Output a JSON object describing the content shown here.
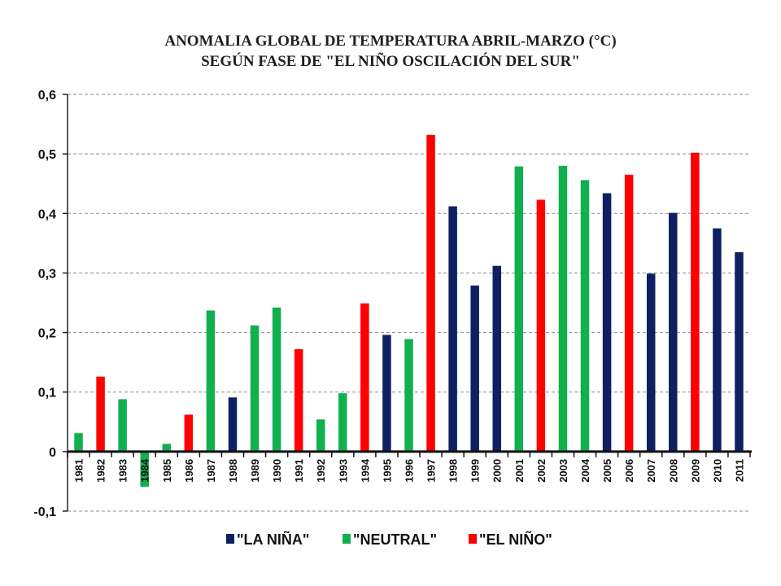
{
  "chart_data": {
    "type": "bar",
    "title": "ANOMALIA GLOBAL DE TEMPERATURA ABRIL-MARZO (°C)",
    "subtitle": "SEGÚN FASE DE \"EL NIÑO OSCILACIÓN DEL SUR\"",
    "xlabel": "",
    "ylabel": "",
    "ylim": [
      -0.1,
      0.6
    ],
    "yticks": [
      "0,6",
      "0,5",
      "0,4",
      "0,3",
      "0,2",
      "0,1",
      "0",
      "-0,1"
    ],
    "ytick_values": [
      0.6,
      0.5,
      0.4,
      0.3,
      0.2,
      0.1,
      0,
      -0.1
    ],
    "grid": true,
    "legend_position": "bottom",
    "categories": [
      "1981",
      "1982",
      "1983",
      "1984",
      "1985",
      "1986",
      "1987",
      "1988",
      "1989",
      "1990",
      "1991",
      "1992",
      "1993",
      "1994",
      "1995",
      "1996",
      "1997",
      "1998",
      "1999",
      "2000",
      "2001",
      "2002",
      "2003",
      "2004",
      "2005",
      "2006",
      "2007",
      "2008",
      "2009",
      "2010",
      "2011"
    ],
    "values": [
      0.031,
      0.126,
      0.088,
      -0.059,
      0.013,
      0.062,
      0.237,
      0.091,
      0.212,
      0.242,
      0.172,
      0.054,
      0.098,
      0.249,
      0.196,
      0.189,
      0.532,
      0.412,
      0.279,
      0.312,
      0.479,
      0.423,
      0.48,
      0.456,
      0.434,
      0.465,
      0.299,
      0.401,
      0.502,
      0.375,
      0.335
    ],
    "phases": [
      "neutral",
      "el_nino",
      "neutral",
      "neutral",
      "neutral",
      "el_nino",
      "neutral",
      "la_nina",
      "neutral",
      "neutral",
      "el_nino",
      "neutral",
      "neutral",
      "el_nino",
      "la_nina",
      "neutral",
      "el_nino",
      "la_nina",
      "la_nina",
      "la_nina",
      "neutral",
      "el_nino",
      "neutral",
      "neutral",
      "la_nina",
      "el_nino",
      "la_nina",
      "la_nina",
      "el_nino",
      "la_nina",
      "la_nina"
    ],
    "series": [
      {
        "key": "la_nina",
        "name": "\"LA NIÑA\"",
        "color": "#0f2062"
      },
      {
        "key": "neutral",
        "name": "\"NEUTRAL\"",
        "color": "#11b04f"
      },
      {
        "key": "el_nino",
        "name": "\"EL NIÑO\"",
        "color": "#ff0000"
      }
    ]
  }
}
